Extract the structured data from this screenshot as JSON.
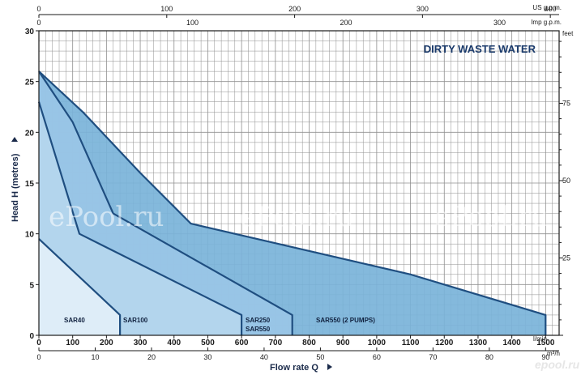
{
  "chart_data": {
    "type": "area",
    "title": "DIRTY WASTE WATER",
    "xlabel": "Flow rate  Q",
    "ylabel": "Head H  (metres)",
    "xlim": [
      0,
      1540
    ],
    "ylim": [
      0,
      30
    ],
    "x_unit": "l/min",
    "x_ticks": [
      0,
      100,
      200,
      300,
      400,
      500,
      600,
      700,
      800,
      900,
      1000,
      1100,
      1200,
      1300,
      1400,
      1500
    ],
    "y_ticks": [
      0,
      5,
      10,
      15,
      20,
      25,
      30
    ],
    "x2_unit": "m³/h",
    "x2_ticks": [
      0,
      10,
      20,
      30,
      40,
      50,
      60,
      70,
      80,
      90
    ],
    "top_unit": "US g.p.m.",
    "top_ticks": [
      0,
      100,
      200,
      300,
      400
    ],
    "top2_unit": "Imp g.p.m.",
    "top2_ticks": [
      0,
      100,
      200,
      300
    ],
    "y2_unit": "feet",
    "y2_ticks": [
      25,
      50,
      75
    ],
    "grid": true,
    "series": [
      {
        "name": "SAR550 (2 PUMPS)",
        "color": "#7ab3d9",
        "points": [
          [
            0,
            26
          ],
          [
            130,
            22
          ],
          [
            300,
            16
          ],
          [
            450,
            11
          ],
          [
            1100,
            6
          ],
          [
            1500,
            2
          ],
          [
            1500,
            0
          ],
          [
            0,
            0
          ]
        ]
      },
      {
        "name": "SAR250 SAR550",
        "color": "#9ac6e6",
        "points": [
          [
            0,
            26
          ],
          [
            100,
            21
          ],
          [
            220,
            12
          ],
          [
            750,
            2
          ],
          [
            750,
            0
          ],
          [
            0,
            0
          ]
        ]
      },
      {
        "name": "SAR100",
        "color": "#b5d6ee",
        "points": [
          [
            0,
            23
          ],
          [
            120,
            10
          ],
          [
            600,
            2
          ],
          [
            600,
            0
          ],
          [
            0,
            0
          ]
        ]
      },
      {
        "name": "SAR40",
        "color": "#e2eff9",
        "points": [
          [
            0,
            9.5
          ],
          [
            240,
            2
          ],
          [
            240,
            0
          ],
          [
            0,
            0
          ]
        ]
      }
    ]
  },
  "colors": {
    "outline": "#1f4e80",
    "grid": "#8f8f8f",
    "axis": "#1a1a1a"
  },
  "watermarks": [
    "ePool.ru",
    "ePool.ru",
    "ePool.ru"
  ],
  "logo_text": "epool.ru"
}
